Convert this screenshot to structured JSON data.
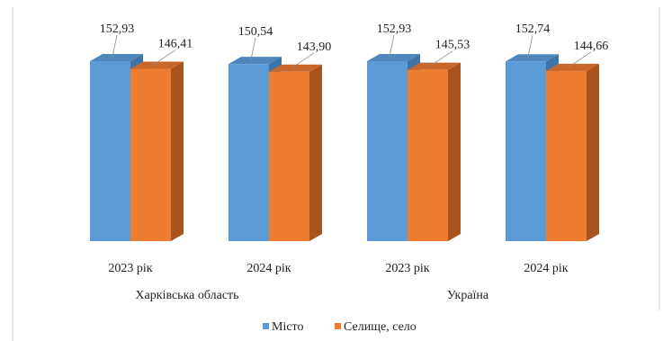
{
  "chart_data": {
    "type": "bar",
    "bar_style": "3d-column",
    "categories": [
      "2023 рік",
      "2024 рік",
      "2023 рік",
      "2024 рік"
    ],
    "groups": [
      {
        "label": "Харківська область",
        "categories": [
          0,
          1
        ]
      },
      {
        "label": "Україна",
        "categories": [
          2,
          3
        ]
      }
    ],
    "series": [
      {
        "name": "Місто",
        "values": [
          152.93,
          150.54,
          152.93,
          152.74
        ],
        "labels": [
          "152,93",
          "150,54",
          "152,93",
          "152,74"
        ],
        "color": "#5b9bd5",
        "side_color": "#3d74a8",
        "top_color": "#4f87bd"
      },
      {
        "name": "Селище, село",
        "values": [
          146.41,
          143.9,
          145.53,
          144.66
        ],
        "labels": [
          "146,41",
          "143,90",
          "145,53",
          "144,66"
        ],
        "color": "#ed7d31",
        "side_color": "#a9541e",
        "top_color": "#c9672a"
      }
    ],
    "legend_position": "bottom",
    "grid": false
  }
}
